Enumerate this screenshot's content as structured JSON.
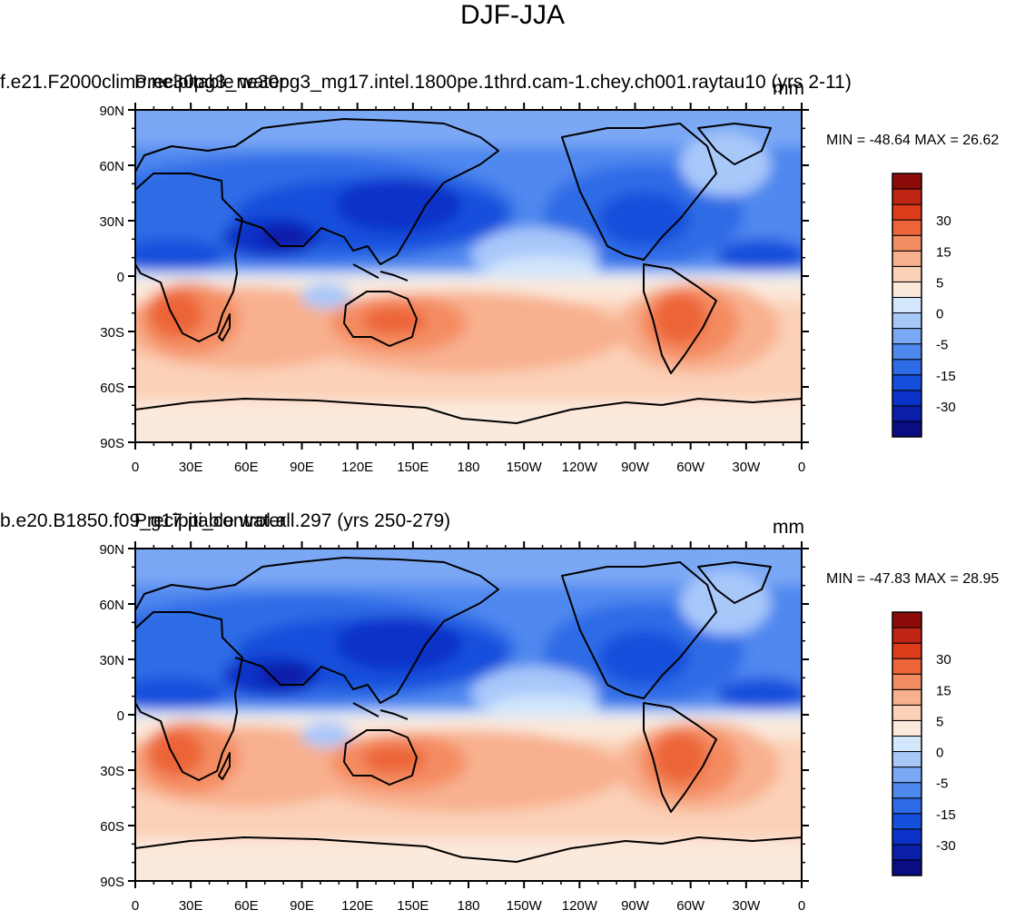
{
  "title": "DJF-JJA",
  "colorbar": {
    "colors": [
      "#0a0c82",
      "#0a1ea8",
      "#0a32c8",
      "#1450dc",
      "#2d6ce6",
      "#4f88ef",
      "#7aa8f5",
      "#a8c8fa",
      "#d2e6fc",
      "#fbe9db",
      "#fbd1b8",
      "#f8b08e",
      "#f48c62",
      "#ec6538",
      "#dc3c1a",
      "#c02414",
      "#8c0c0a"
    ],
    "labels": [
      "-30",
      "-15",
      "-5",
      "0",
      "5",
      "15",
      "30"
    ]
  },
  "chart_data": [
    {
      "type": "heatmap",
      "title": "",
      "left_title": "f.e21.F2000climo.ne30pg3_ne30pg3_mg17.intel.1800pe.1thrd.cam-1.chey.ch001.raytau10 (yrs 2-11)",
      "center_title": "Precipitable water",
      "units": "mm",
      "min_max_text": "MIN = -48.64  MAX =  26.62",
      "min": -48.64,
      "max": 26.62,
      "x_ticks": [
        "0",
        "30E",
        "60E",
        "90E",
        "120E",
        "150E",
        "180",
        "150W",
        "120W",
        "90W",
        "60W",
        "30W",
        "0"
      ],
      "y_ticks": [
        "90N",
        "60N",
        "30N",
        "0",
        "30S",
        "60S",
        "90S"
      ],
      "xlim": [
        0,
        360
      ],
      "ylim": [
        -90,
        90
      ]
    },
    {
      "type": "heatmap",
      "title": "",
      "left_title": "b.e20.B1850.f09_g17.pi_control.all.297 (yrs 250-279)",
      "center_title": "Precipitable water",
      "units": "mm",
      "min_max_text": "MIN = -47.83  MAX =  28.95",
      "min": -47.83,
      "max": 28.95,
      "x_ticks": [
        "0",
        "30E",
        "60E",
        "90E",
        "120E",
        "150E",
        "180",
        "150W",
        "120W",
        "90W",
        "60W",
        "30W",
        "0"
      ],
      "y_ticks": [
        "90N",
        "60N",
        "30N",
        "0",
        "30S",
        "60S",
        "90S"
      ],
      "xlim": [
        0,
        360
      ],
      "ylim": [
        -90,
        90
      ]
    }
  ]
}
